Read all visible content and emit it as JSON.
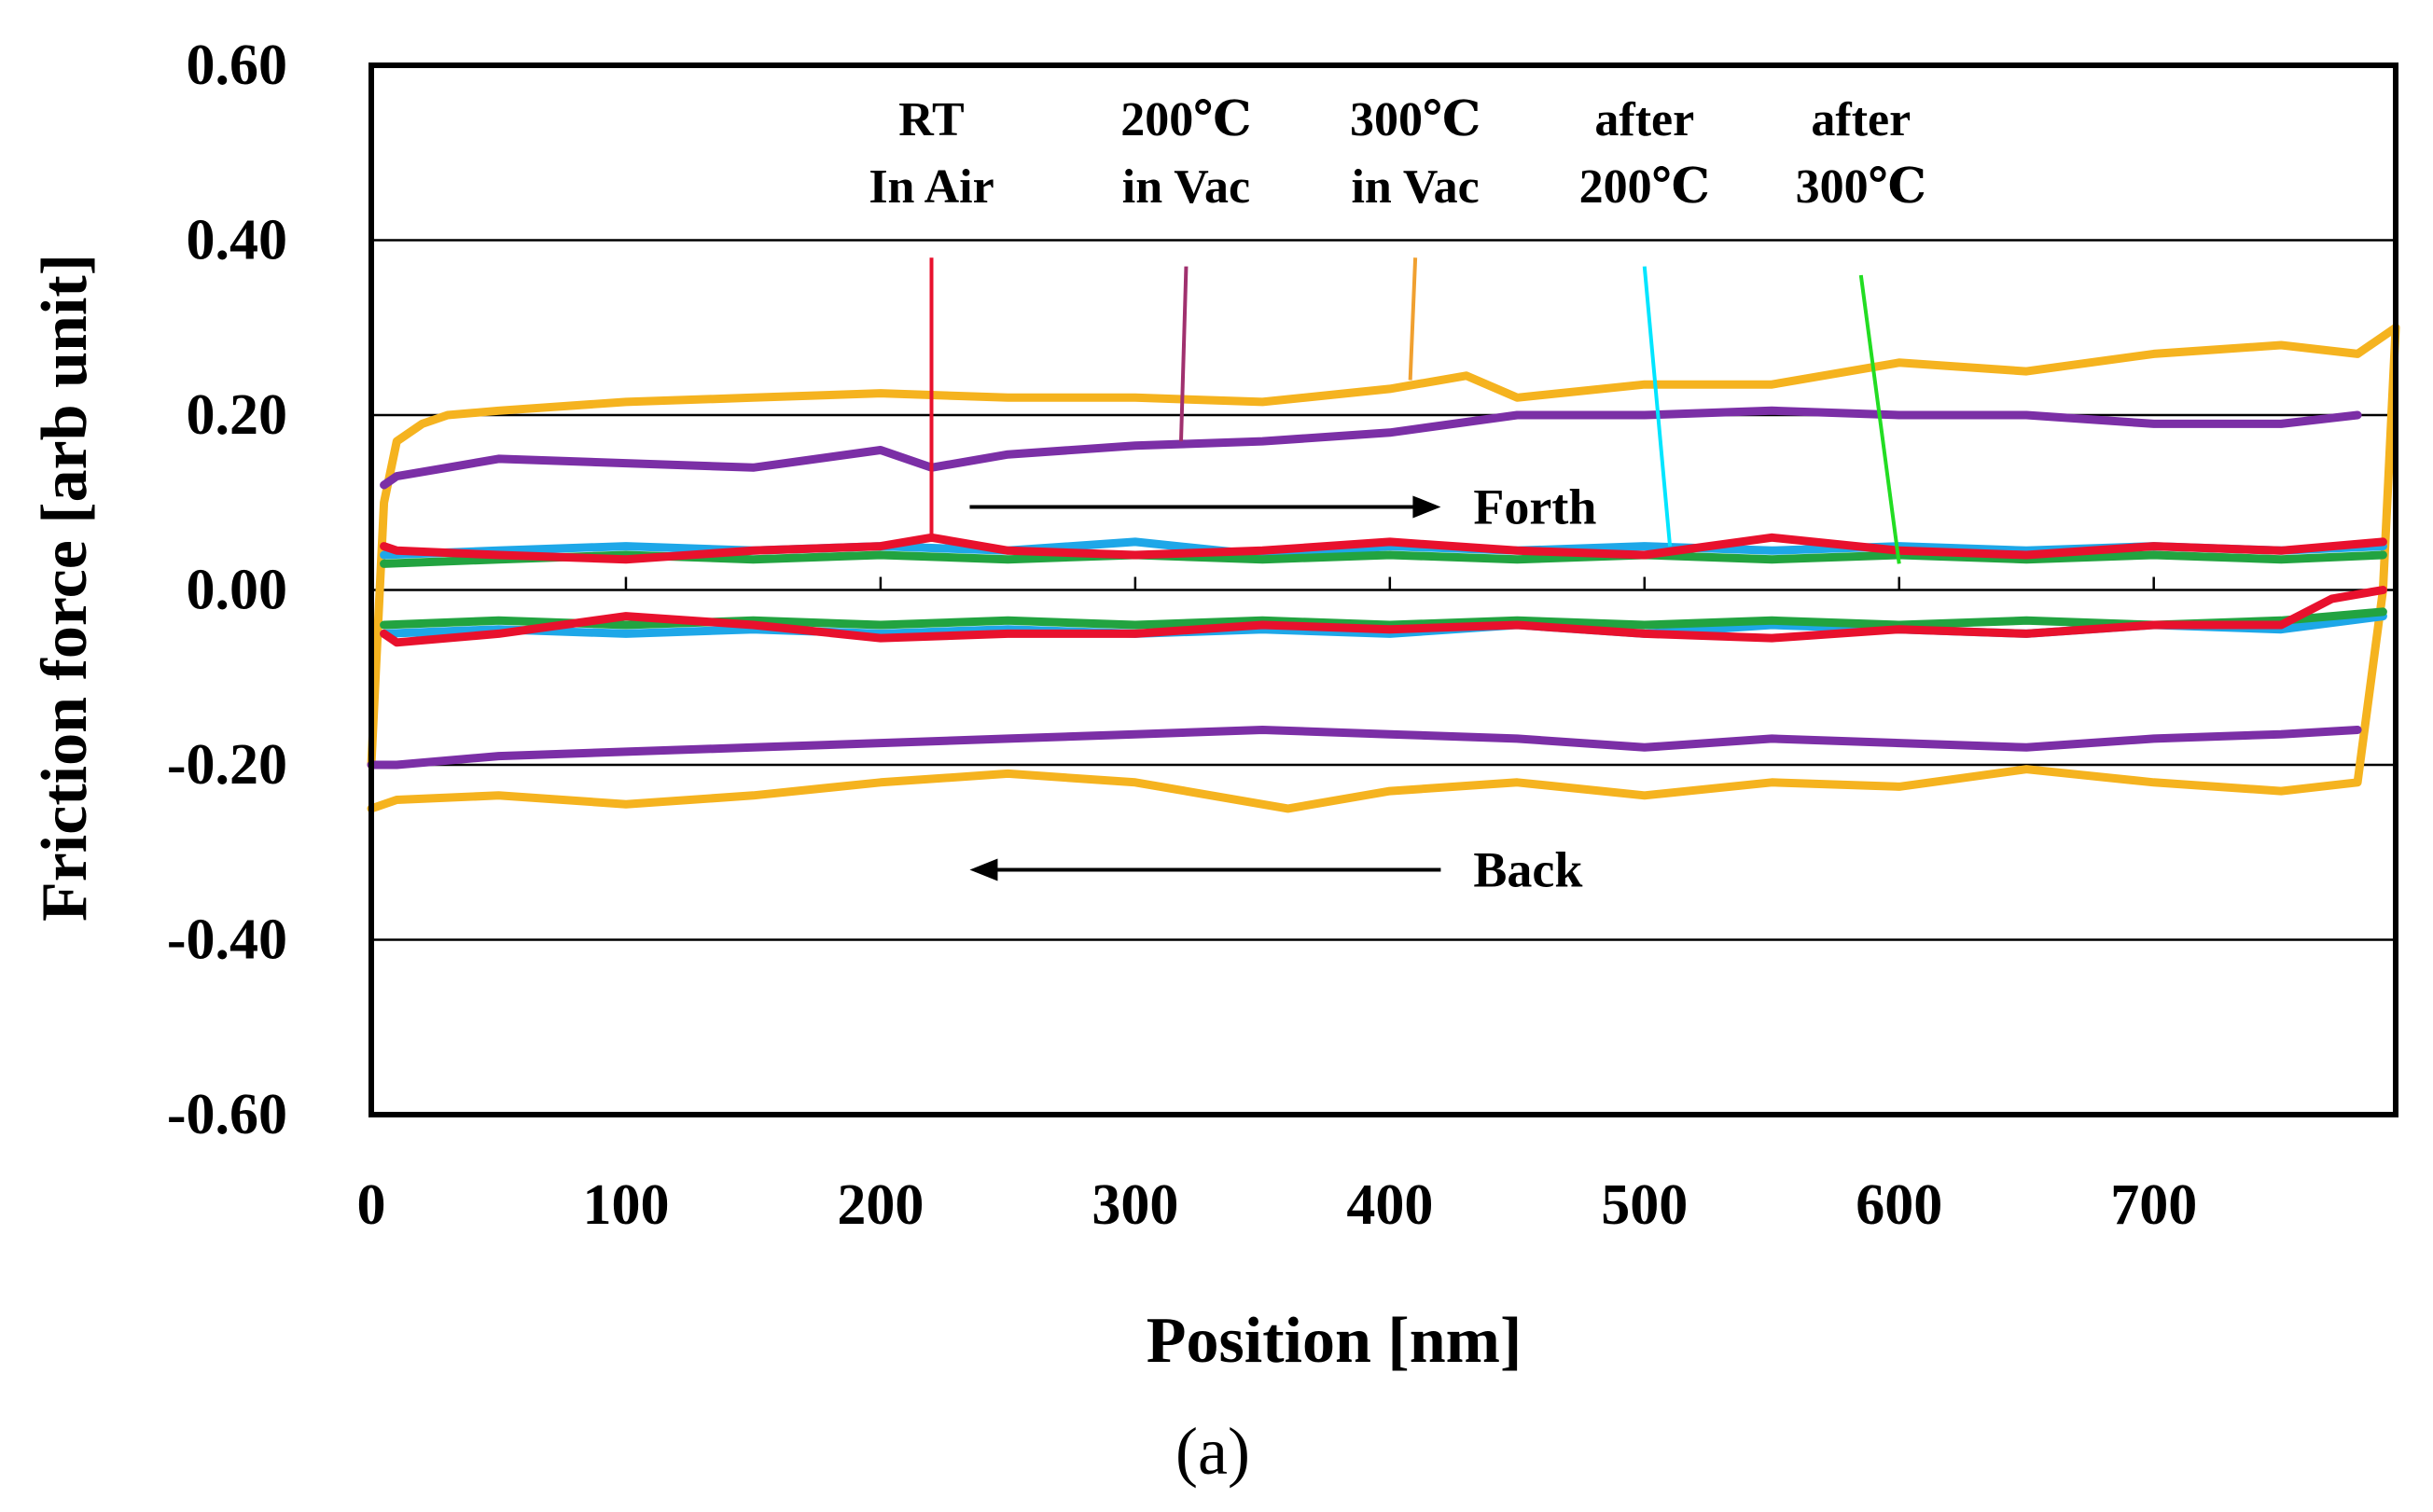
{
  "chart_data": {
    "type": "line",
    "xlabel": "Position [nm]",
    "ylabel": "Friction force [arb unit]",
    "panel_label": "(a)",
    "xlim": [
      0,
      795
    ],
    "ylim": [
      -0.6,
      0.6
    ],
    "x_ticks": [
      "0",
      "100",
      "200",
      "300",
      "400",
      "500",
      "600",
      "700"
    ],
    "x_tick_values": [
      0,
      100,
      200,
      300,
      400,
      500,
      600,
      700
    ],
    "y_ticks": [
      "0.60",
      "0.40",
      "0.20",
      "0.00",
      "-0.20",
      "-0.40",
      "-0.60"
    ],
    "y_tick_values": [
      0.6,
      0.4,
      0.2,
      0.0,
      -0.2,
      -0.4,
      -0.6
    ],
    "grid": "horizontal",
    "annotations": [
      {
        "lines": [
          "RT",
          "In Air"
        ],
        "color": "#e8112d",
        "pointer_from": [
          220,
          0.38
        ],
        "pointer_to": [
          220,
          0.06
        ]
      },
      {
        "lines": [
          "200℃",
          "in Vac"
        ],
        "color": "#a0306e",
        "pointer_from": [
          320,
          0.37
        ],
        "pointer_to": [
          318,
          0.17
        ]
      },
      {
        "lines": [
          "300℃",
          "in Vac"
        ],
        "color": "#f0a030",
        "pointer_from": [
          410,
          0.38
        ],
        "pointer_to": [
          408,
          0.24
        ]
      },
      {
        "lines": [
          "after",
          "200℃"
        ],
        "color": "#00e5ff",
        "pointer_from": [
          500,
          0.37
        ],
        "pointer_to": [
          510,
          0.05
        ]
      },
      {
        "lines": [
          "after",
          "300℃"
        ],
        "color": "#22dd22",
        "pointer_from": [
          585,
          0.36
        ],
        "pointer_to": [
          600,
          0.03
        ]
      }
    ],
    "arrows": [
      {
        "label": "Forth",
        "from": [
          235,
          0.095
        ],
        "to": [
          420,
          0.095
        ]
      },
      {
        "label": "Back",
        "from": [
          420,
          -0.32
        ],
        "to": [
          235,
          -0.32
        ]
      }
    ],
    "series": [
      {
        "color": "#f5b31f",
        "forth": {
          "x": [
            0,
            5,
            10,
            20,
            30,
            50,
            100,
            150,
            200,
            250,
            300,
            350,
            400,
            430,
            450,
            500,
            550,
            600,
            650,
            700,
            750,
            780,
            795
          ],
          "y": [
            -0.2,
            0.1,
            0.17,
            0.19,
            0.2,
            0.205,
            0.215,
            0.22,
            0.225,
            0.22,
            0.22,
            0.215,
            0.23,
            0.245,
            0.22,
            0.235,
            0.235,
            0.26,
            0.25,
            0.27,
            0.28,
            0.27,
            0.3
          ]
        },
        "back": {
          "x": [
            795,
            790,
            780,
            750,
            700,
            650,
            600,
            550,
            500,
            450,
            400,
            360,
            300,
            250,
            200,
            150,
            100,
            50,
            10,
            0
          ],
          "y": [
            0.3,
            0.0,
            -0.22,
            -0.23,
            -0.22,
            -0.205,
            -0.225,
            -0.22,
            -0.235,
            -0.22,
            -0.23,
            -0.25,
            -0.22,
            -0.21,
            -0.22,
            -0.235,
            -0.245,
            -0.235,
            -0.24,
            -0.25
          ]
        }
      },
      {
        "color": "#7b2fa6",
        "forth": {
          "x": [
            5,
            10,
            30,
            50,
            100,
            150,
            200,
            220,
            250,
            300,
            350,
            400,
            450,
            500,
            550,
            600,
            650,
            700,
            750,
            780
          ],
          "y": [
            0.12,
            0.13,
            0.14,
            0.15,
            0.145,
            0.14,
            0.16,
            0.14,
            0.155,
            0.165,
            0.17,
            0.18,
            0.2,
            0.2,
            0.205,
            0.2,
            0.2,
            0.19,
            0.19,
            0.2
          ]
        },
        "back": {
          "x": [
            780,
            750,
            700,
            650,
            600,
            550,
            500,
            450,
            400,
            350,
            300,
            250,
            200,
            150,
            100,
            50,
            10,
            0
          ],
          "y": [
            -0.16,
            -0.165,
            -0.17,
            -0.18,
            -0.175,
            -0.17,
            -0.18,
            -0.17,
            -0.165,
            -0.16,
            -0.165,
            -0.17,
            -0.175,
            -0.18,
            -0.185,
            -0.19,
            -0.2,
            -0.2
          ]
        }
      },
      {
        "color": "#1ea7e8",
        "forth": {
          "x": [
            5,
            50,
            100,
            150,
            200,
            250,
            300,
            350,
            400,
            450,
            500,
            550,
            600,
            650,
            700,
            750,
            790
          ],
          "y": [
            0.04,
            0.045,
            0.05,
            0.045,
            0.05,
            0.045,
            0.055,
            0.04,
            0.05,
            0.045,
            0.05,
            0.045,
            0.05,
            0.045,
            0.05,
            0.045,
            0.05
          ]
        },
        "back": {
          "x": [
            790,
            750,
            700,
            650,
            600,
            550,
            500,
            450,
            400,
            350,
            300,
            250,
            200,
            150,
            100,
            50,
            5
          ],
          "y": [
            -0.03,
            -0.045,
            -0.04,
            -0.05,
            -0.045,
            -0.04,
            -0.05,
            -0.04,
            -0.05,
            -0.045,
            -0.05,
            -0.045,
            -0.05,
            -0.045,
            -0.05,
            -0.045,
            -0.05
          ]
        }
      },
      {
        "color": "#22a340",
        "forth": {
          "x": [
            5,
            50,
            100,
            150,
            200,
            250,
            300,
            350,
            400,
            450,
            500,
            550,
            600,
            650,
            700,
            750,
            790
          ],
          "y": [
            0.03,
            0.035,
            0.04,
            0.035,
            0.04,
            0.035,
            0.04,
            0.035,
            0.04,
            0.035,
            0.04,
            0.035,
            0.04,
            0.035,
            0.04,
            0.035,
            0.04
          ]
        },
        "back": {
          "x": [
            790,
            750,
            700,
            650,
            600,
            550,
            500,
            450,
            400,
            350,
            300,
            250,
            200,
            150,
            100,
            50,
            5
          ],
          "y": [
            -0.025,
            -0.035,
            -0.04,
            -0.035,
            -0.04,
            -0.035,
            -0.04,
            -0.035,
            -0.04,
            -0.035,
            -0.04,
            -0.035,
            -0.04,
            -0.035,
            -0.04,
            -0.035,
            -0.04
          ]
        }
      },
      {
        "color": "#e8112d",
        "forth": {
          "x": [
            5,
            10,
            50,
            100,
            150,
            200,
            220,
            250,
            300,
            350,
            400,
            450,
            500,
            550,
            600,
            650,
            700,
            750,
            790
          ],
          "y": [
            0.05,
            0.045,
            0.04,
            0.035,
            0.045,
            0.05,
            0.06,
            0.045,
            0.04,
            0.045,
            0.055,
            0.045,
            0.04,
            0.06,
            0.045,
            0.04,
            0.05,
            0.045,
            0.055
          ]
        },
        "back": {
          "x": [
            790,
            770,
            750,
            700,
            650,
            600,
            550,
            500,
            450,
            400,
            350,
            300,
            250,
            200,
            150,
            100,
            50,
            10,
            5
          ],
          "y": [
            0.0,
            -0.01,
            -0.04,
            -0.04,
            -0.05,
            -0.045,
            -0.055,
            -0.05,
            -0.04,
            -0.045,
            -0.04,
            -0.05,
            -0.05,
            -0.055,
            -0.04,
            -0.03,
            -0.05,
            -0.06,
            -0.05
          ]
        }
      }
    ]
  }
}
